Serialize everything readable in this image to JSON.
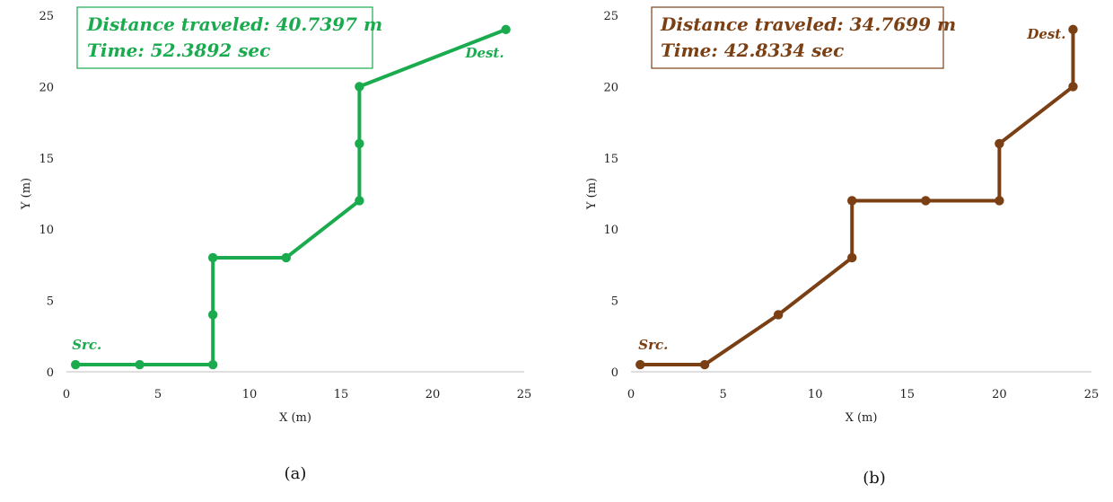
{
  "chart_data": [
    {
      "type": "line",
      "caption": "(a)",
      "color": "#1aab4f",
      "info_line1": "Distance traveled: 40.7397 m",
      "info_line2": "Time: 52.3892 sec",
      "xlabel": "X (m)",
      "ylabel": "Y (m)",
      "xlim": [
        0,
        25
      ],
      "ylim": [
        0,
        25
      ],
      "xticks": [
        0,
        5,
        10,
        15,
        20,
        25
      ],
      "yticks": [
        0,
        5,
        10,
        15,
        20,
        25
      ],
      "grid": false,
      "src_label": "Src.",
      "dest_label": "Dest.",
      "points": [
        [
          0.5,
          0.5
        ],
        [
          4,
          0.5
        ],
        [
          8,
          0.5
        ],
        [
          8,
          4
        ],
        [
          8,
          8
        ],
        [
          12,
          8
        ],
        [
          16,
          12
        ],
        [
          16,
          16
        ],
        [
          16,
          20
        ],
        [
          24,
          24
        ]
      ]
    },
    {
      "type": "line",
      "caption": "(b)",
      "color": "#7b3f14",
      "info_line1": "Distance traveled: 34.7699 m",
      "info_line2": "Time: 42.8334 sec",
      "xlabel": "X (m)",
      "ylabel": "Y (m)",
      "xlim": [
        0,
        25
      ],
      "ylim": [
        0,
        25
      ],
      "xticks": [
        0,
        5,
        10,
        15,
        20,
        25
      ],
      "yticks": [
        0,
        5,
        10,
        15,
        20,
        25
      ],
      "grid": false,
      "src_label": "Src.",
      "dest_label": "Dest.",
      "points": [
        [
          0.5,
          0.5
        ],
        [
          4,
          0.5
        ],
        [
          8,
          4
        ],
        [
          12,
          8
        ],
        [
          12,
          12
        ],
        [
          16,
          12
        ],
        [
          20,
          12
        ],
        [
          20,
          16
        ],
        [
          24,
          20
        ],
        [
          24,
          24
        ]
      ]
    }
  ]
}
